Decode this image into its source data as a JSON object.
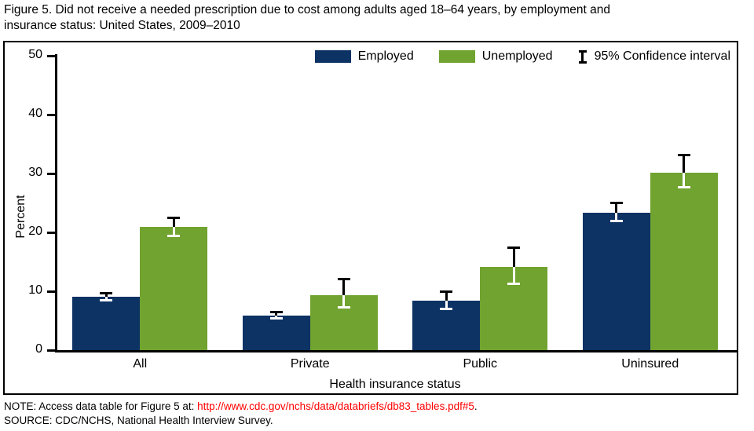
{
  "title": {
    "line1": "Figure 5. Did not receive a needed prescription due to cost among adults aged 18–64 years, by employment and",
    "line2": "insurance status: United States, 2009–2010"
  },
  "colors": {
    "employed": "#0d3264",
    "unemployed": "#70a32f",
    "axis": "#000000",
    "link": "#ff0000",
    "error_bar_outside": "#000000",
    "error_bar_inside": "#ffffff"
  },
  "legend": {
    "ci_label": "95% Confidence interval"
  },
  "chart_data": {
    "type": "bar",
    "title": "Did not receive a needed prescription due to cost among adults aged 18–64 years, by employment and insurance status: United States, 2009–2010",
    "categories": [
      "All",
      "Private",
      "Public",
      "Uninsured"
    ],
    "series": [
      {
        "name": "Employed",
        "values": [
          9.1,
          5.9,
          8.4,
          23.3
        ],
        "ci_low": [
          8.4,
          5.3,
          7.0,
          21.9
        ],
        "ci_high": [
          9.8,
          6.5,
          10.0,
          25.1
        ]
      },
      {
        "name": "Unemployed",
        "values": [
          20.9,
          9.3,
          14.1,
          30.2
        ],
        "ci_low": [
          19.3,
          7.2,
          11.2,
          27.6
        ],
        "ci_high": [
          22.5,
          12.1,
          17.5,
          33.2
        ]
      }
    ],
    "xlabel": "Health insurance status",
    "ylabel": "Percent",
    "ylim": [
      0,
      50
    ],
    "yticks": [
      0,
      10,
      20,
      30,
      40,
      50
    ],
    "error_bars": "95% confidence interval",
    "legend_position": "top-right-inside",
    "grid": false
  },
  "footer": {
    "note_prefix": "NOTE: Access data table for Figure 5 at: ",
    "note_link": "http://www.cdc.gov/nchs/data/databriefs/db83_tables.pdf#5",
    "note_suffix": ".",
    "source": "SOURCE: CDC/NCHS, National Health Interview Survey."
  }
}
